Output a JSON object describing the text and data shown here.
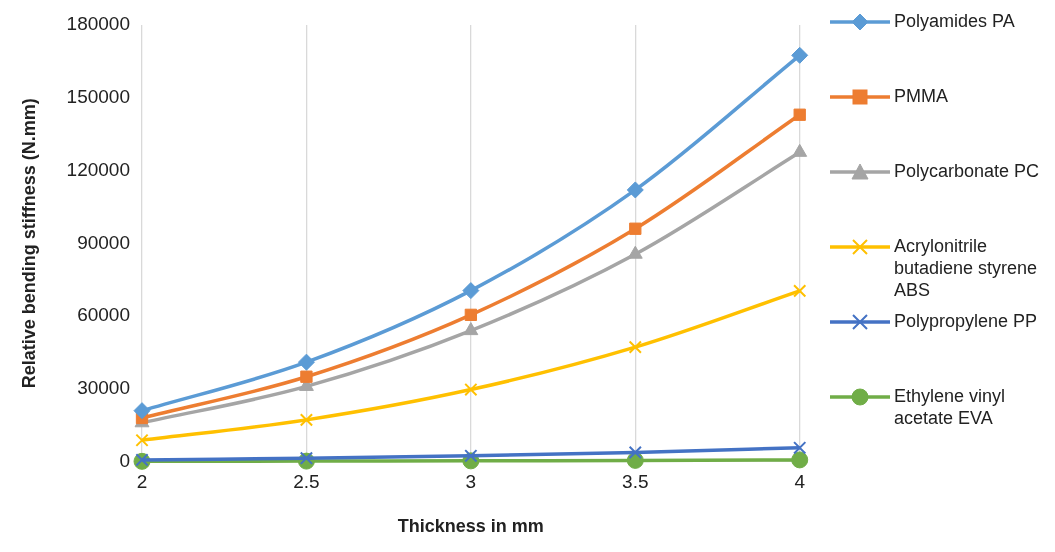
{
  "chart_data": {
    "type": "line",
    "xlabel": "Thickness in mm",
    "ylabel": "Relative bending stiffness (N.mm)",
    "x": [
      2,
      2.5,
      3,
      3.5,
      4
    ],
    "xlim": [
      2,
      4
    ],
    "xticks": [
      2,
      2.5,
      3,
      3.5,
      4
    ],
    "ylim": [
      0,
      180000
    ],
    "yticks": [
      0,
      30000,
      60000,
      90000,
      120000,
      150000,
      180000
    ],
    "grid": "x",
    "legend": "right",
    "series": [
      {
        "name": "Polyamides PA",
        "color": "#5b9bd5",
        "marker": "diamond",
        "values": [
          21000,
          41000,
          70500,
          112000,
          167500
        ]
      },
      {
        "name": "PMMA",
        "color": "#ed7d31",
        "marker": "square",
        "values": [
          18000,
          35000,
          60500,
          96000,
          143000
        ]
      },
      {
        "name": "Polycarbonate PC",
        "color": "#a5a5a5",
        "marker": "triangle",
        "values": [
          16000,
          31000,
          54000,
          85500,
          127500
        ]
      },
      {
        "name": "Acrylonitrile butadiene styrene ABS",
        "color": "#ffc000",
        "marker": "cross",
        "values": [
          8800,
          17200,
          29700,
          47200,
          70400
        ]
      },
      {
        "name": "Polypropylene PP",
        "color": "#4472c4",
        "marker": "cross",
        "values": [
          700,
          1400,
          2400,
          3800,
          5700
        ]
      },
      {
        "name": "Ethylene vinyl acetate EVA",
        "color": "#70ad47",
        "marker": "circle",
        "values": [
          100,
          200,
          300,
          500,
          700
        ]
      }
    ]
  }
}
